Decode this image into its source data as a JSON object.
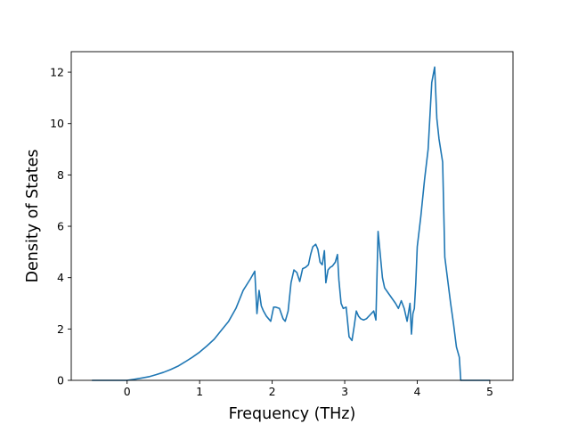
{
  "chart_data": {
    "type": "line",
    "title": "",
    "xlabel": "Frequency (THz)",
    "ylabel": "Density of States",
    "xlim": [
      -0.77,
      5.32
    ],
    "ylim": [
      0,
      12.8
    ],
    "xticks": [
      0,
      1,
      2,
      3,
      4,
      5
    ],
    "yticks": [
      0,
      2,
      4,
      6,
      8,
      10,
      12
    ],
    "grid": false,
    "legend": "none",
    "colors": {
      "line": "#1f77b4",
      "axes": "#000000",
      "background": "#ffffff"
    },
    "series": [
      {
        "x": [
          -0.48,
          -0.3,
          -0.15,
          0,
          0.1,
          0.2,
          0.3,
          0.4,
          0.5,
          0.6,
          0.7,
          0.8,
          0.9,
          1.0,
          1.1,
          1.2,
          1.3,
          1.4,
          1.5,
          1.6,
          1.7,
          1.76,
          1.79,
          1.82,
          1.85,
          1.88,
          1.92,
          1.98,
          2.02,
          2.05,
          2.1,
          2.15,
          2.18,
          2.22,
          2.26,
          2.3,
          2.34,
          2.38,
          2.42,
          2.46,
          2.5,
          2.53,
          2.56,
          2.6,
          2.63,
          2.66,
          2.69,
          2.72,
          2.74,
          2.77,
          2.8,
          2.83,
          2.87,
          2.9,
          2.92,
          2.95,
          2.98,
          3.02,
          3.06,
          3.1,
          3.13,
          3.16,
          3.19,
          3.22,
          3.26,
          3.3,
          3.35,
          3.4,
          3.43,
          3.46,
          3.48,
          3.52,
          3.55,
          3.6,
          3.65,
          3.7,
          3.74,
          3.78,
          3.82,
          3.86,
          3.9,
          3.92,
          3.94,
          3.96,
          3.98,
          4.0,
          4.05,
          4.1,
          4.15,
          4.2,
          4.24,
          4.27,
          4.3,
          4.35,
          4.38,
          4.42,
          4.46,
          4.5,
          4.54,
          4.58,
          4.6,
          4.7,
          4.8,
          5.0
        ],
        "values": [
          0,
          0,
          0,
          0,
          0.04,
          0.09,
          0.14,
          0.22,
          0.31,
          0.42,
          0.55,
          0.72,
          0.9,
          1.1,
          1.34,
          1.6,
          1.95,
          2.3,
          2.8,
          3.5,
          3.95,
          4.25,
          2.6,
          3.5,
          2.9,
          2.7,
          2.5,
          2.3,
          2.85,
          2.85,
          2.8,
          2.4,
          2.3,
          2.7,
          3.8,
          4.3,
          4.2,
          3.85,
          4.35,
          4.4,
          4.5,
          4.9,
          5.2,
          5.3,
          5.1,
          4.6,
          4.5,
          5.05,
          3.8,
          4.3,
          4.4,
          4.45,
          4.6,
          4.9,
          3.9,
          3.0,
          2.8,
          2.85,
          1.7,
          1.55,
          2.1,
          2.7,
          2.5,
          2.4,
          2.35,
          2.4,
          2.55,
          2.7,
          2.35,
          5.8,
          5.2,
          4.0,
          3.6,
          3.4,
          3.2,
          3.0,
          2.8,
          3.1,
          2.8,
          2.3,
          3.0,
          1.8,
          2.6,
          2.8,
          3.8,
          5.2,
          6.4,
          7.8,
          9.0,
          11.6,
          12.2,
          10.2,
          9.4,
          8.5,
          4.8,
          3.9,
          3.0,
          2.2,
          1.3,
          0.9,
          0,
          0,
          0,
          0
        ]
      }
    ]
  }
}
